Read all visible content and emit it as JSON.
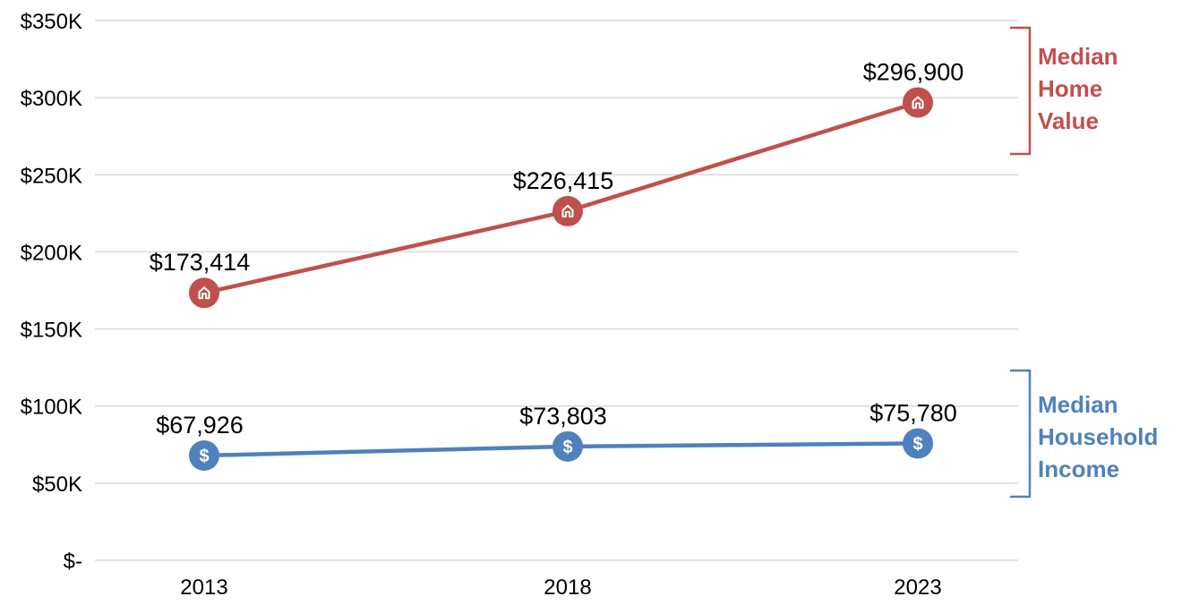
{
  "chart_data": {
    "type": "line",
    "title": "",
    "xlabel": "",
    "ylabel": "",
    "categories": [
      "2013",
      "2018",
      "2023"
    ],
    "ylim": [
      0,
      350000
    ],
    "y_ticks": [
      0,
      50000,
      100000,
      150000,
      200000,
      250000,
      300000,
      350000
    ],
    "y_tick_labels": [
      "$-",
      "$50K",
      "$100K",
      "$150K",
      "$200K",
      "$250K",
      "$300K",
      "$350K"
    ],
    "grid": true,
    "legend_position": "right (bracket labels)",
    "series": [
      {
        "name": "Median Home Value",
        "label_lines": [
          "Median",
          "Home",
          "Value"
        ],
        "color": "#C0504D",
        "marker_icon": "house-icon",
        "values": [
          173414,
          226415,
          296900
        ],
        "data_labels": [
          "$173,414",
          "$226,415",
          "$296,900"
        ]
      },
      {
        "name": "Median Household Income",
        "label_lines": [
          "Median",
          "Household",
          "Income"
        ],
        "color": "#4F81BD",
        "marker_icon": "dollar-icon",
        "values": [
          67926,
          73803,
          75780
        ],
        "data_labels": [
          "$67,926",
          "$73,803",
          "$75,780"
        ]
      }
    ]
  }
}
